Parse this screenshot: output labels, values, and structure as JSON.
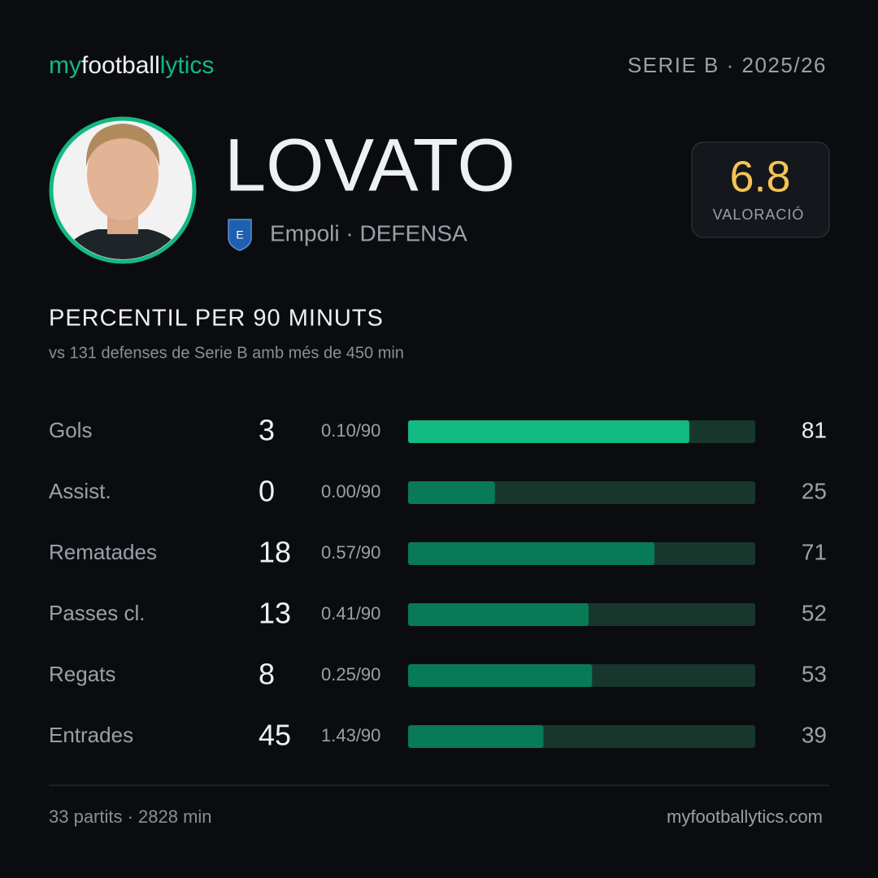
{
  "header": {
    "brand": [
      "my",
      "football",
      "lytics"
    ],
    "competition": "SERIE B · 2025/26"
  },
  "player": {
    "name": "LOVATO",
    "team": "Empoli · DEFENSA",
    "rating": 6.8,
    "rating_label": "VALORACIÓ"
  },
  "section": {
    "title": "PERCENTIL PER 90 MINUTS",
    "subtitle": "vs 131 defenses de Serie B amb més de 450 min"
  },
  "stats": {
    "xlim": [
      0,
      100
    ],
    "bar_color": "#087a56",
    "highlight_color": "#12b981",
    "track_color": "#17372c",
    "rows": [
      {
        "label": "Gols",
        "total": 3,
        "per90": "0.10/90",
        "percentile": 81,
        "highlight": true
      },
      {
        "label": "Assist.",
        "total": 0,
        "per90": "0.00/90",
        "percentile": 25
      },
      {
        "label": "Rematades",
        "total": 18,
        "per90": "0.57/90",
        "percentile": 71
      },
      {
        "label": "Passes cl.",
        "total": 13,
        "per90": "0.41/90",
        "percentile": 52
      },
      {
        "label": "Regats",
        "total": 8,
        "per90": "0.25/90",
        "percentile": 53
      },
      {
        "label": "Entrades",
        "total": 45,
        "per90": "1.43/90",
        "percentile": 39
      }
    ]
  },
  "footer": {
    "left": "33 partits · 2828 min",
    "right": "myfootballytics.com"
  }
}
